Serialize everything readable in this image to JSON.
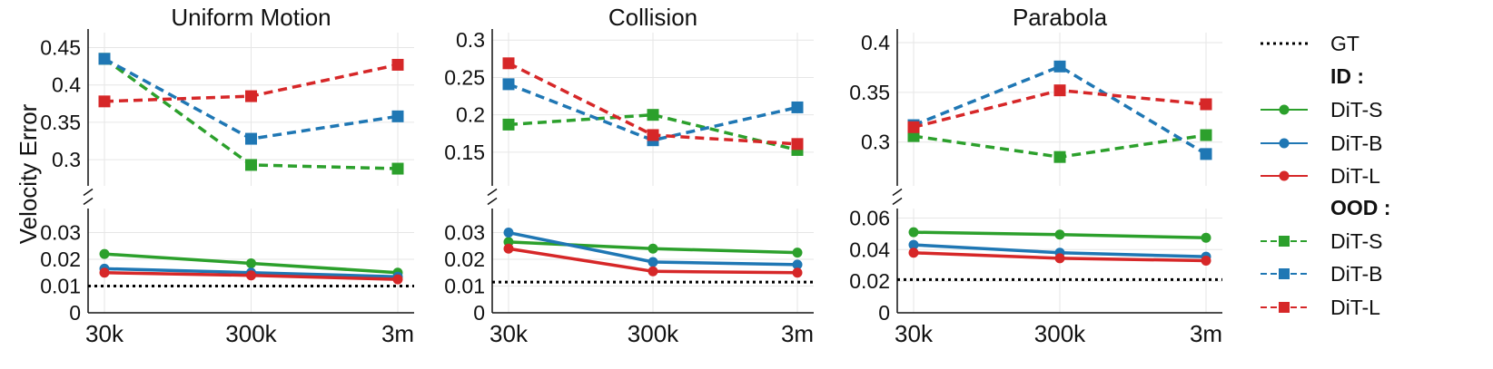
{
  "figure": {
    "ylabel": "Velocity Error",
    "x_categories": [
      "30k",
      "300k",
      "3m"
    ]
  },
  "legend": {
    "gt_label": "GT",
    "id_header": "ID :",
    "ood_header": "OOD :",
    "entries": [
      {
        "key": "id_s",
        "label": "DiT-S",
        "color": "#2ca02c",
        "style": "solid",
        "marker": "circle"
      },
      {
        "key": "id_b",
        "label": "DiT-B",
        "color": "#1f77b4",
        "style": "solid",
        "marker": "circle"
      },
      {
        "key": "id_l",
        "label": "DiT-L",
        "color": "#d62728",
        "style": "solid",
        "marker": "circle"
      },
      {
        "key": "ood_s",
        "label": "DiT-S",
        "color": "#2ca02c",
        "style": "dashed",
        "marker": "square"
      },
      {
        "key": "ood_b",
        "label": "DiT-B",
        "color": "#1f77b4",
        "style": "dashed",
        "marker": "square"
      },
      {
        "key": "ood_l",
        "label": "DiT-L",
        "color": "#d62728",
        "style": "dashed",
        "marker": "square"
      }
    ]
  },
  "chart_data": [
    {
      "type": "line",
      "title": "Uniform Motion",
      "categories": [
        "30k",
        "300k",
        "3m"
      ],
      "gt": 0.01,
      "top": {
        "ylim": [
          0.265,
          0.47
        ],
        "ticks": [
          0.3,
          0.35,
          0.4,
          0.45
        ],
        "tick_labels": [
          "0.3",
          "0.35",
          "0.4",
          "0.45"
        ]
      },
      "bottom": {
        "ylim": [
          0,
          0.039
        ],
        "ticks": [
          0,
          0.01,
          0.02,
          0.03
        ],
        "tick_labels": [
          "0",
          "0.01",
          "0.02",
          "0.03"
        ]
      },
      "series": [
        {
          "name": "ID DiT-S",
          "key": "id_s",
          "panel": "bottom",
          "values": [
            0.022,
            0.0185,
            0.015
          ]
        },
        {
          "name": "ID DiT-B",
          "key": "id_b",
          "panel": "bottom",
          "values": [
            0.0165,
            0.015,
            0.0135
          ]
        },
        {
          "name": "ID DiT-L",
          "key": "id_l",
          "panel": "bottom",
          "values": [
            0.015,
            0.014,
            0.0125
          ]
        },
        {
          "name": "OOD DiT-S",
          "key": "ood_s",
          "panel": "top",
          "values": [
            0.435,
            0.293,
            0.288
          ]
        },
        {
          "name": "OOD DiT-B",
          "key": "ood_b",
          "panel": "top",
          "values": [
            0.435,
            0.328,
            0.358
          ]
        },
        {
          "name": "OOD DiT-L",
          "key": "ood_l",
          "panel": "top",
          "values": [
            0.378,
            0.385,
            0.427
          ]
        }
      ]
    },
    {
      "type": "line",
      "title": "Collision",
      "categories": [
        "30k",
        "300k",
        "3m"
      ],
      "gt": 0.0115,
      "top": {
        "ylim": [
          0.105,
          0.31
        ],
        "ticks": [
          0.15,
          0.2,
          0.25,
          0.3
        ],
        "tick_labels": [
          "0.15",
          "0.2",
          "0.25",
          "0.3"
        ]
      },
      "bottom": {
        "ylim": [
          0,
          0.039
        ],
        "ticks": [
          0,
          0.01,
          0.02,
          0.03
        ],
        "tick_labels": [
          "0",
          "0.01",
          "0.02",
          "0.03"
        ]
      },
      "series": [
        {
          "name": "ID DiT-S",
          "key": "id_s",
          "panel": "bottom",
          "values": [
            0.0265,
            0.024,
            0.0225
          ]
        },
        {
          "name": "ID DiT-B",
          "key": "id_b",
          "panel": "bottom",
          "values": [
            0.03,
            0.019,
            0.018
          ]
        },
        {
          "name": "ID DiT-L",
          "key": "id_l",
          "panel": "bottom",
          "values": [
            0.024,
            0.0155,
            0.015
          ]
        },
        {
          "name": "OOD DiT-S",
          "key": "ood_s",
          "panel": "top",
          "values": [
            0.187,
            0.2,
            0.153
          ]
        },
        {
          "name": "OOD DiT-B",
          "key": "ood_b",
          "panel": "top",
          "values": [
            0.241,
            0.166,
            0.21
          ]
        },
        {
          "name": "OOD DiT-L",
          "key": "ood_l",
          "panel": "top",
          "values": [
            0.269,
            0.173,
            0.161
          ]
        }
      ]
    },
    {
      "type": "line",
      "title": "Parabola",
      "categories": [
        "30k",
        "300k",
        "3m"
      ],
      "gt": 0.021,
      "top": {
        "ylim": [
          0.256,
          0.41
        ],
        "ticks": [
          0.3,
          0.35,
          0.4
        ],
        "tick_labels": [
          "0.3",
          "0.35",
          "0.4"
        ]
      },
      "bottom": {
        "ylim": [
          0,
          0.066
        ],
        "ticks": [
          0,
          0.02,
          0.04,
          0.06
        ],
        "tick_labels": [
          "0",
          "0.02",
          "0.04",
          "0.06"
        ]
      },
      "series": [
        {
          "name": "ID DiT-S",
          "key": "id_s",
          "panel": "bottom",
          "values": [
            0.051,
            0.0495,
            0.0475
          ]
        },
        {
          "name": "ID DiT-B",
          "key": "id_b",
          "panel": "bottom",
          "values": [
            0.043,
            0.038,
            0.0355
          ]
        },
        {
          "name": "ID DiT-L",
          "key": "id_l",
          "panel": "bottom",
          "values": [
            0.038,
            0.0345,
            0.033
          ]
        },
        {
          "name": "OOD DiT-S",
          "key": "ood_s",
          "panel": "top",
          "values": [
            0.306,
            0.285,
            0.307
          ]
        },
        {
          "name": "OOD DiT-B",
          "key": "ood_b",
          "panel": "top",
          "values": [
            0.317,
            0.376,
            0.288
          ]
        },
        {
          "name": "OOD DiT-L",
          "key": "ood_l",
          "panel": "top",
          "values": [
            0.315,
            0.352,
            0.338
          ]
        }
      ]
    }
  ]
}
